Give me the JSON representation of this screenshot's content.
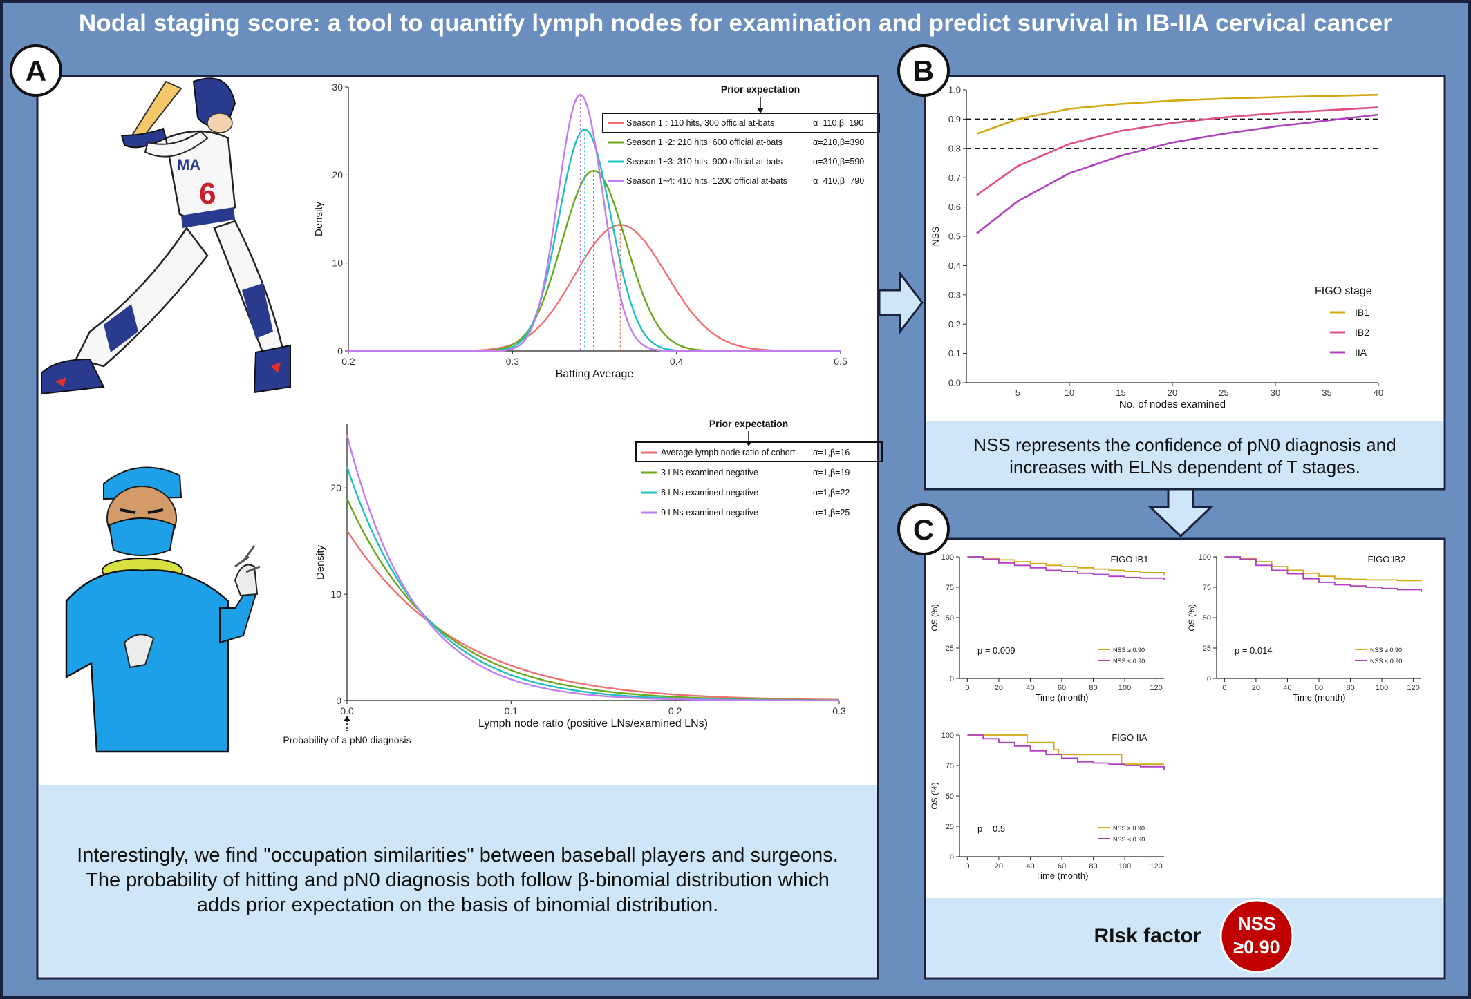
{
  "title": "Nodal staging score: a tool to quantify lymph nodes for examination and predict survival in IB-IIA cervical cancer",
  "panels": {
    "a": "A",
    "b": "B",
    "c": "C"
  },
  "colors": {
    "frame": "#6a8ebd",
    "light_panel": "#cfe6f8",
    "border": "#1b2240",
    "risk_circle": "#c00000"
  },
  "panel_a": {
    "caption": [
      "Interestingly, we find \"occupation similarities\" between baseball players and surgeons.",
      "The probability of hitting and pN0 diagnosis both follow β-binomial distribution which",
      "adds prior expectation on the basis of binomial distribution."
    ],
    "icons": [
      "baseball-player-illustration",
      "surgeon-illustration"
    ]
  },
  "panel_b": {
    "caption": [
      "NSS represents the confidence of pN0 diagnosis and",
      "increases with ELNs dependent of T stages."
    ]
  },
  "panel_c": {
    "risk_label": "RIsk factor",
    "risk_badge": [
      "NSS",
      "≥0.90"
    ]
  },
  "chart_data": [
    {
      "id": "batting",
      "type": "line",
      "xlabel": "Batting Average",
      "ylabel": "Density",
      "xlim": [
        0.2,
        0.5
      ],
      "ylim": [
        0,
        30
      ],
      "xticks": [
        "0.2",
        "0.3",
        "0.4",
        "0.5"
      ],
      "yticks": [
        "0",
        "10",
        "20",
        "30"
      ],
      "annotation": "Prior expectation",
      "series": [
        {
          "name": "Season 1  : 110 hits, 300 official at-bats",
          "params": "α=110,β=190",
          "alpha": 110,
          "beta": 190,
          "color": "#f07070"
        },
        {
          "name": "Season 1~2: 210 hits, 600 official at-bats",
          "params": "α=210,β=390",
          "alpha": 210,
          "beta": 390,
          "color": "#6aa81a"
        },
        {
          "name": "Season 1~3: 310 hits, 900 official at-bats",
          "params": "α=310,β=590",
          "alpha": 310,
          "beta": 590,
          "color": "#1ec0c0"
        },
        {
          "name": "Season 1~4: 410 hits, 1200 official at-bats",
          "params": "α=410,β=790",
          "alpha": 410,
          "beta": 790,
          "color": "#c27ef0"
        }
      ]
    },
    {
      "id": "lnr",
      "type": "line",
      "xlabel": "Lymph node ratio (positive LNs/examined LNs)",
      "ylabel": "Density",
      "xlim": [
        0,
        0.3
      ],
      "ylim": [
        0,
        26
      ],
      "xticks": [
        "0.0",
        "0.1",
        "0.2",
        "0.3"
      ],
      "yticks": [
        "0",
        "10",
        "20"
      ],
      "annotation": "Prior expectation",
      "bottom_annotation": "Probability of a pN0 diagnosis",
      "series": [
        {
          "name": "Average lymph node ratio of cohort",
          "params": "α=1,β=16",
          "alpha": 1,
          "beta": 16,
          "color": "#f07070"
        },
        {
          "name": "3 LNs examined negative",
          "params": "α=1,β=19",
          "alpha": 1,
          "beta": 19,
          "color": "#6aa81a"
        },
        {
          "name": "6 LNs examined negative",
          "params": "α=1,β=22",
          "alpha": 1,
          "beta": 22,
          "color": "#1ec0c0"
        },
        {
          "name": "9 LNs examined negative",
          "params": "α=1,β=25",
          "alpha": 1,
          "beta": 25,
          "color": "#c27ef0"
        }
      ]
    },
    {
      "id": "nss",
      "type": "line",
      "xlabel": "No. of nodes examined",
      "ylabel": "NSS",
      "xlim": [
        0,
        40
      ],
      "ylim": [
        0,
        1
      ],
      "xticks": [
        "5",
        "10",
        "15",
        "20",
        "25",
        "30",
        "35",
        "40"
      ],
      "yticks": [
        "0.0",
        "0.1",
        "0.2",
        "0.3",
        "0.4",
        "0.5",
        "0.6",
        "0.7",
        "0.8",
        "0.9",
        "1.0"
      ],
      "reference_lines": [
        0.8,
        0.9
      ],
      "legend_title": "FIGO stage",
      "series": [
        {
          "name": "IB1",
          "color": "#d1a910",
          "x": [
            1,
            5,
            10,
            15,
            20,
            25,
            30,
            35,
            40
          ],
          "y": [
            0.85,
            0.9,
            0.935,
            0.952,
            0.963,
            0.97,
            0.975,
            0.979,
            0.983
          ]
        },
        {
          "name": "IB2",
          "color": "#e0507a",
          "x": [
            1,
            5,
            10,
            15,
            20,
            25,
            30,
            35,
            40
          ],
          "y": [
            0.64,
            0.74,
            0.815,
            0.86,
            0.887,
            0.906,
            0.92,
            0.93,
            0.94
          ]
        },
        {
          "name": "IIA",
          "color": "#b040c0",
          "x": [
            1,
            5,
            10,
            15,
            20,
            25,
            30,
            35,
            40
          ],
          "y": [
            0.51,
            0.62,
            0.715,
            0.775,
            0.82,
            0.85,
            0.875,
            0.895,
            0.915
          ]
        }
      ]
    },
    {
      "id": "km_ib1",
      "type": "line",
      "title": "FIGO IB1",
      "xlabel": "Time (month)",
      "ylabel": "OS (%)",
      "xlim": [
        -5,
        125
      ],
      "ylim": [
        0,
        100
      ],
      "xticks": [
        "0",
        "20",
        "40",
        "60",
        "80",
        "100",
        "120"
      ],
      "yticks": [
        "0",
        "25",
        "50",
        "75",
        "100"
      ],
      "pvalue": "p = 0.009",
      "series": [
        {
          "name": "NSS ≥ 0.90",
          "color": "#d1a910",
          "x": [
            0,
            10,
            20,
            30,
            40,
            50,
            60,
            70,
            80,
            90,
            100,
            110,
            125
          ],
          "y": [
            100,
            99,
            97.5,
            96,
            94.5,
            93,
            92,
            91,
            90,
            89,
            88,
            87,
            85
          ]
        },
        {
          "name": "NSS < 0.90",
          "color": "#b040c0",
          "x": [
            0,
            10,
            20,
            30,
            40,
            50,
            60,
            70,
            80,
            90,
            100,
            110,
            125
          ],
          "y": [
            100,
            98,
            95,
            93,
            91,
            89,
            88,
            86.5,
            85.5,
            84,
            83,
            82.5,
            81
          ]
        }
      ]
    },
    {
      "id": "km_ib2",
      "type": "line",
      "title": "FIGO IB2",
      "xlabel": "Time (month)",
      "ylabel": "OS (%)",
      "xlim": [
        -5,
        125
      ],
      "ylim": [
        0,
        100
      ],
      "xticks": [
        "0",
        "20",
        "40",
        "60",
        "80",
        "100",
        "120"
      ],
      "yticks": [
        "0",
        "25",
        "50",
        "75",
        "100"
      ],
      "pvalue": "p = 0.014",
      "series": [
        {
          "name": "NSS ≥ 0.90",
          "color": "#d1a910",
          "x": [
            0,
            10,
            20,
            30,
            40,
            50,
            60,
            70,
            80,
            90,
            100,
            110,
            125
          ],
          "y": [
            100,
            99,
            96,
            92,
            89,
            86.5,
            84,
            82,
            81.5,
            81,
            81,
            80.5,
            80
          ]
        },
        {
          "name": "NSS < 0.90",
          "color": "#b040c0",
          "x": [
            0,
            10,
            20,
            30,
            40,
            50,
            60,
            70,
            80,
            90,
            100,
            110,
            125
          ],
          "y": [
            100,
            98,
            93,
            89,
            86,
            82,
            79,
            77,
            76,
            75,
            74,
            73,
            71
          ]
        }
      ]
    },
    {
      "id": "km_iia",
      "type": "line",
      "title": "FIGO IIA",
      "xlabel": "Time (month)",
      "ylabel": "OS (%)",
      "xlim": [
        -5,
        125
      ],
      "ylim": [
        0,
        100
      ],
      "xticks": [
        "0",
        "20",
        "40",
        "60",
        "80",
        "100",
        "120"
      ],
      "yticks": [
        "0",
        "25",
        "50",
        "75",
        "100"
      ],
      "pvalue": "p = 0.5",
      "series": [
        {
          "name": "NSS ≥ 0.90",
          "color": "#d1a910",
          "x": [
            0,
            38,
            38,
            55,
            55,
            58,
            58,
            98,
            98,
            125
          ],
          "y": [
            100,
            100,
            94,
            94,
            88,
            88,
            84,
            84,
            76,
            76
          ]
        },
        {
          "name": "NSS < 0.90",
          "color": "#b040c0",
          "x": [
            0,
            10,
            20,
            30,
            40,
            50,
            60,
            70,
            80,
            90,
            100,
            110,
            125
          ],
          "y": [
            100,
            97,
            94,
            91,
            87,
            84,
            81,
            78,
            77,
            76,
            75,
            74,
            71
          ]
        }
      ]
    }
  ]
}
